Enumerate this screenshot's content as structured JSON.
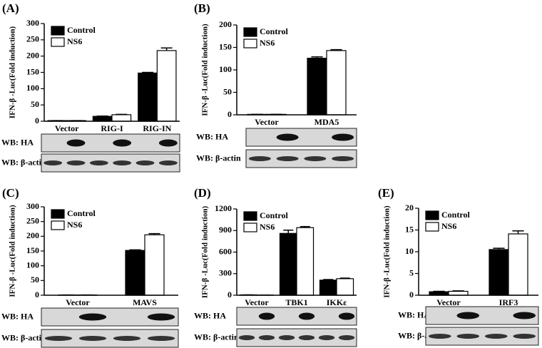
{
  "chart_data": [
    {
      "type": "bar",
      "title": "(A)",
      "ylabel": "IFN-β -Luc(Fold induction)",
      "categories": [
        "Vector",
        "RIG-I",
        "RIG-IN"
      ],
      "series": [
        {
          "name": "Control",
          "color": "#000000",
          "values": [
            2,
            15,
            148
          ],
          "errors": [
            0,
            1,
            2
          ]
        },
        {
          "name": "NS6",
          "color": "#ffffff",
          "values": [
            2,
            20,
            217
          ],
          "errors": [
            0,
            1,
            8
          ]
        }
      ],
      "ylim": [
        0,
        300
      ],
      "yticks": [
        0,
        50,
        100,
        150,
        200,
        250,
        300
      ],
      "annotations": [
        "WB: HA",
        "WB: β-actin"
      ]
    },
    {
      "type": "bar",
      "title": "(B)",
      "ylabel": "IFN-β -Luc(Fold induction)",
      "categories": [
        "Vector",
        "MDA5"
      ],
      "series": [
        {
          "name": "Control",
          "color": "#000000",
          "values": [
            1,
            126
          ],
          "errors": [
            0,
            3
          ]
        },
        {
          "name": "NS6",
          "color": "#ffffff",
          "values": [
            1,
            143
          ],
          "errors": [
            0,
            2
          ]
        }
      ],
      "ylim": [
        0,
        200
      ],
      "yticks": [
        0,
        50,
        100,
        150,
        200
      ],
      "annotations": [
        "WB: HA",
        "WB: β-actin"
      ]
    },
    {
      "type": "bar",
      "title": "(C)",
      "ylabel": "IFN-β -Luc(Fold induction)",
      "categories": [
        "Vector",
        "MAVS"
      ],
      "series": [
        {
          "name": "Control",
          "color": "#000000",
          "values": [
            1,
            152
          ],
          "errors": [
            0,
            2
          ]
        },
        {
          "name": "NS6",
          "color": "#ffffff",
          "values": [
            1,
            205
          ],
          "errors": [
            0,
            4
          ]
        }
      ],
      "ylim": [
        0,
        300
      ],
      "yticks": [
        0,
        50,
        100,
        150,
        200,
        250,
        300
      ],
      "annotations": [
        "WB: HA",
        "WB: β-actin"
      ]
    },
    {
      "type": "bar",
      "title": "(D)",
      "ylabel": "IFN-β -Luc(Fold induction)",
      "categories": [
        "Vector",
        "TBK1",
        "IKKε"
      ],
      "series": [
        {
          "name": "Control",
          "color": "#000000",
          "values": [
            5,
            860,
            210
          ],
          "errors": [
            0,
            45,
            8
          ]
        },
        {
          "name": "NS6",
          "color": "#ffffff",
          "values": [
            3,
            940,
            230
          ],
          "errors": [
            0,
            15,
            8
          ]
        }
      ],
      "ylim": [
        0,
        1200
      ],
      "yticks": [
        0,
        300,
        600,
        900,
        1200
      ],
      "annotations": [
        "WB: HA",
        "WB: β-actin"
      ]
    },
    {
      "type": "bar",
      "title": "(E)",
      "ylabel": "IFN-β -Luc(Fold induction)",
      "categories": [
        "Vector",
        "IRF3"
      ],
      "series": [
        {
          "name": "Control",
          "color": "#000000",
          "values": [
            0.8,
            10.5
          ],
          "errors": [
            0.1,
            0.3
          ]
        },
        {
          "name": "NS6",
          "color": "#ffffff",
          "values": [
            0.9,
            14.1
          ],
          "errors": [
            0.1,
            0.7
          ]
        }
      ],
      "ylim": [
        0,
        20
      ],
      "yticks": [
        0,
        5,
        10,
        15,
        20
      ],
      "annotations": [
        "WB: HA",
        "WB: β-actin"
      ]
    }
  ]
}
